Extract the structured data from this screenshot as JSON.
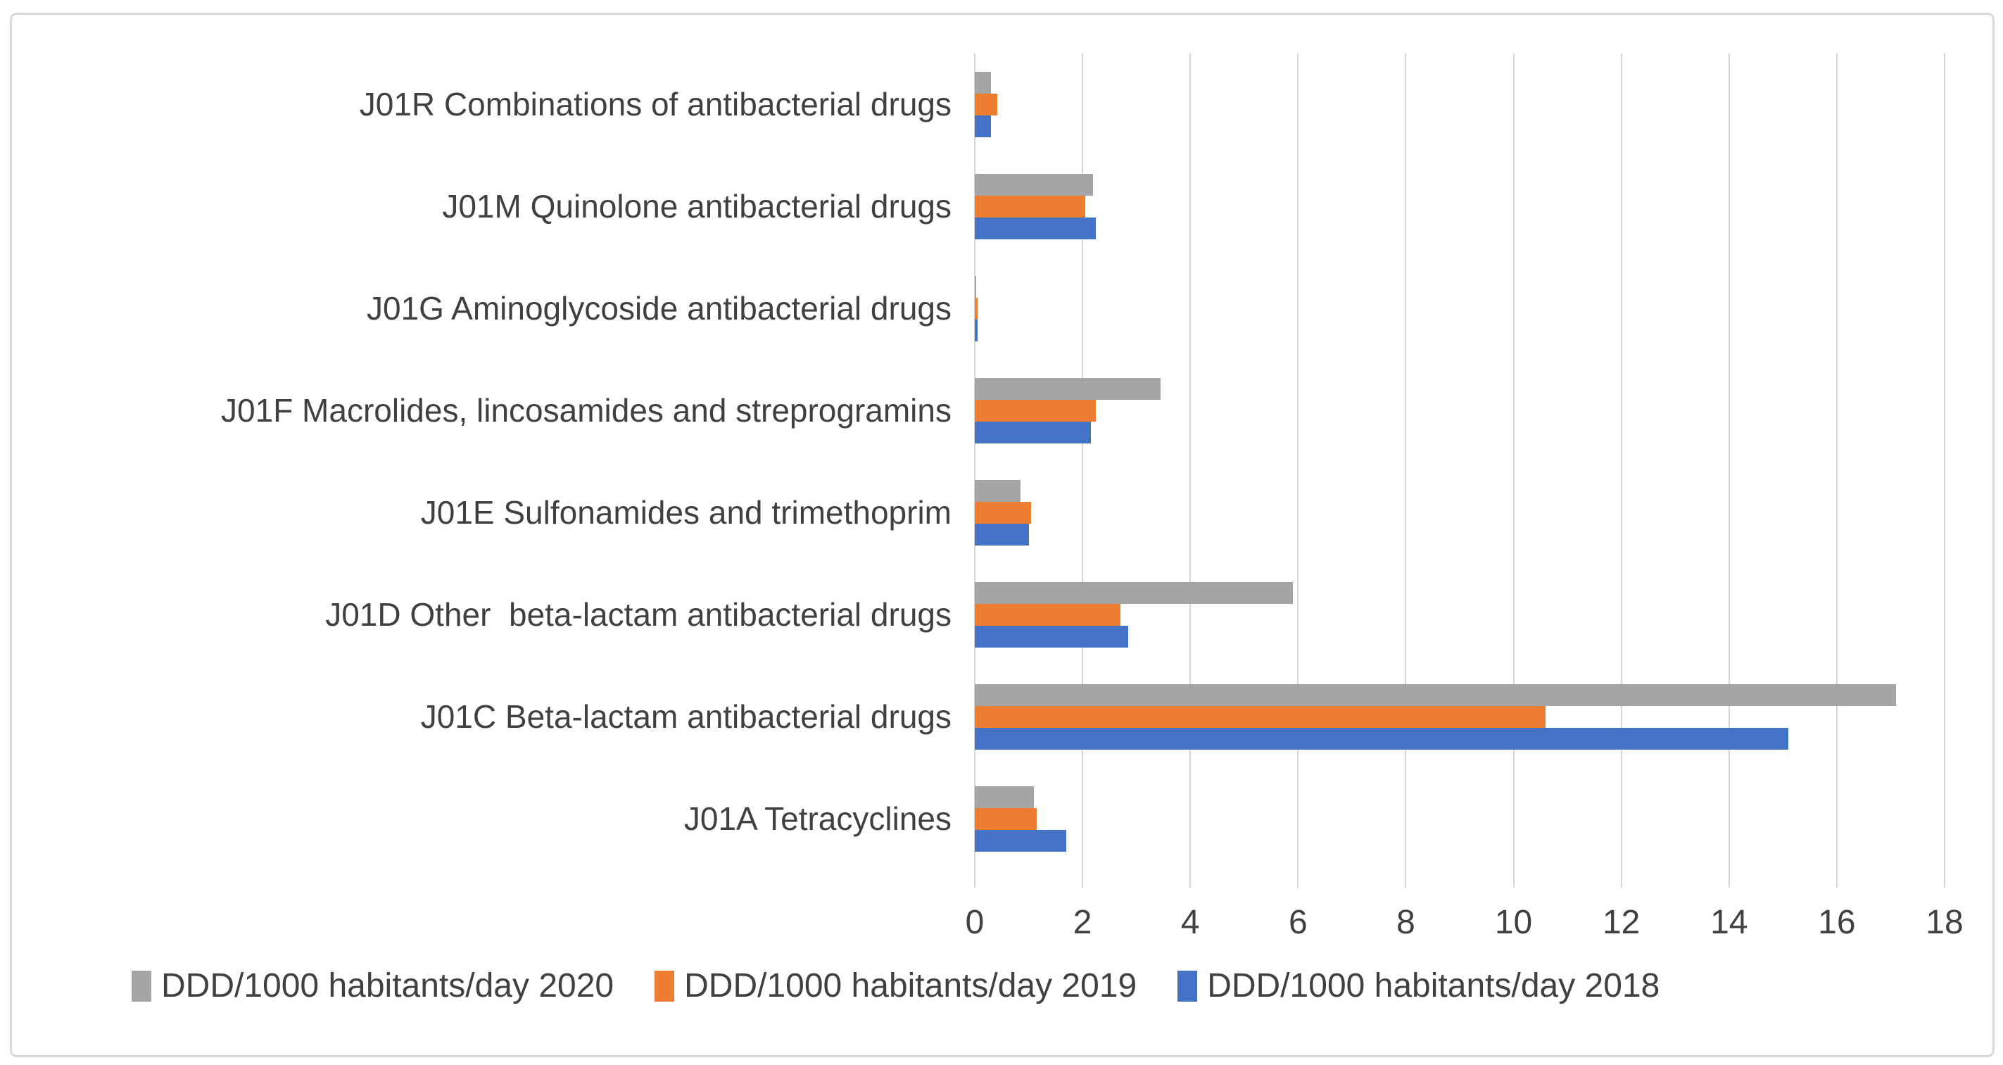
{
  "chart_data": {
    "type": "bar",
    "orientation": "horizontal",
    "title": "",
    "xlabel": "",
    "ylabel": "",
    "xlim": [
      0,
      18
    ],
    "xticks": [
      0,
      2,
      4,
      6,
      8,
      10,
      12,
      14,
      16,
      18
    ],
    "grid": true,
    "legend_position": "bottom",
    "categories": [
      "J01R Combinations of antibacterial drugs",
      "J01M Quinolone antibacterial drugs",
      "J01G Aminoglycoside antibacterial drugs",
      "J01F Macrolides, lincosamides and streprogramins",
      "J01E Sulfonamides and trimethoprim",
      "J01D Other  beta-lactam antibacterial drugs",
      "J01C Beta-lactam antibacterial drugs",
      "J01A Tetracyclines"
    ],
    "series": [
      {
        "name": "DDD/1000 habitants/day 2020",
        "color": "#A5A5A5",
        "values": [
          0.3,
          2.2,
          0.02,
          3.45,
          0.85,
          5.9,
          17.1,
          1.1
        ]
      },
      {
        "name": "DDD/1000 habitants/day 2019",
        "color": "#ED7D31",
        "values": [
          0.42,
          2.05,
          0.05,
          2.25,
          1.05,
          2.7,
          10.6,
          1.15
        ]
      },
      {
        "name": "DDD/1000 habitants/day 2018",
        "color": "#4472C4",
        "values": [
          0.3,
          2.25,
          0.05,
          2.15,
          1.0,
          2.85,
          15.1,
          1.7
        ]
      }
    ]
  },
  "colors": {
    "gridline": "#D6D6D6",
    "text": "#404040",
    "card_border": "#D9D9D9",
    "background": "#FFFFFF"
  }
}
